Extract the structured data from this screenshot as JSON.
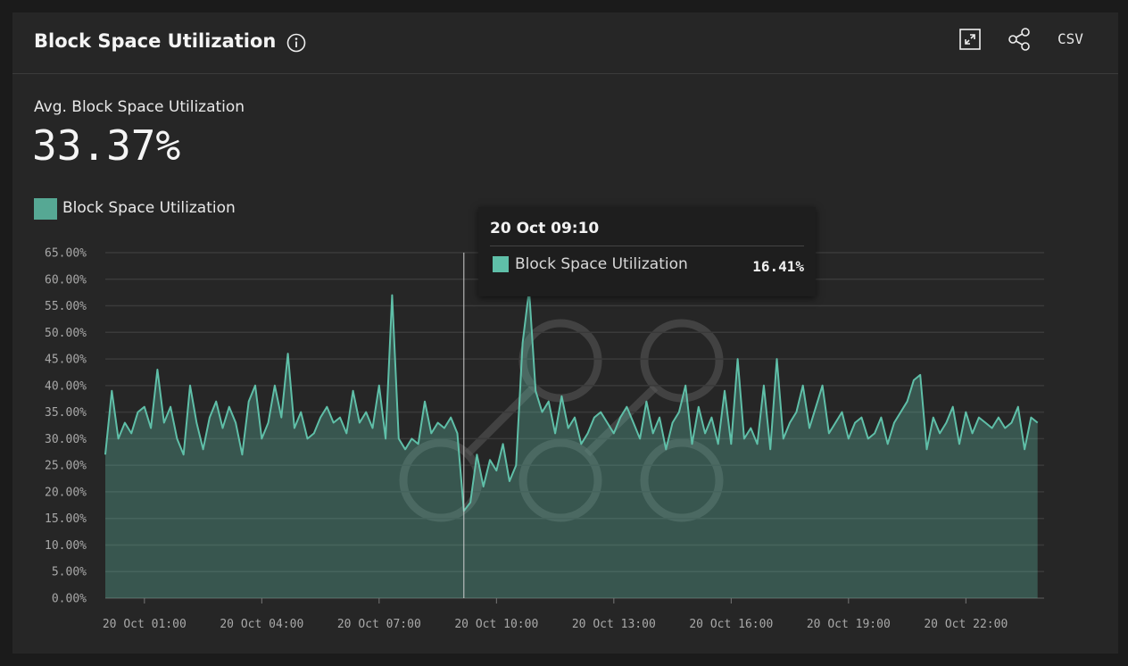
{
  "header": {
    "title": "Block Space Utilization",
    "csv": "CSV"
  },
  "stat": {
    "label": "Avg. Block Space Utilization",
    "value": "33.37%"
  },
  "tooltip": {
    "title": "20 Oct 09:10",
    "series": "Block Space Utilization",
    "value_label": "16.41%"
  },
  "chart_data": {
    "type": "area",
    "x": [
      "20 Oct 00:00",
      "20 Oct 00:10",
      "20 Oct 00:20",
      "20 Oct 00:30",
      "20 Oct 00:40",
      "20 Oct 00:50",
      "20 Oct 01:00",
      "20 Oct 01:10",
      "20 Oct 01:20",
      "20 Oct 01:30",
      "20 Oct 01:40",
      "20 Oct 01:50",
      "20 Oct 02:00",
      "20 Oct 02:10",
      "20 Oct 02:20",
      "20 Oct 02:30",
      "20 Oct 02:40",
      "20 Oct 02:50",
      "20 Oct 03:00",
      "20 Oct 03:10",
      "20 Oct 03:20",
      "20 Oct 03:30",
      "20 Oct 03:40",
      "20 Oct 03:50",
      "20 Oct 04:00",
      "20 Oct 04:10",
      "20 Oct 04:20",
      "20 Oct 04:30",
      "20 Oct 04:40",
      "20 Oct 04:50",
      "20 Oct 05:00",
      "20 Oct 05:10",
      "20 Oct 05:20",
      "20 Oct 05:30",
      "20 Oct 05:40",
      "20 Oct 05:50",
      "20 Oct 06:00",
      "20 Oct 06:10",
      "20 Oct 06:20",
      "20 Oct 06:30",
      "20 Oct 06:40",
      "20 Oct 06:50",
      "20 Oct 07:00",
      "20 Oct 07:10",
      "20 Oct 07:20",
      "20 Oct 07:30",
      "20 Oct 07:40",
      "20 Oct 07:50",
      "20 Oct 08:00",
      "20 Oct 08:10",
      "20 Oct 08:20",
      "20 Oct 08:30",
      "20 Oct 08:40",
      "20 Oct 08:50",
      "20 Oct 09:00",
      "20 Oct 09:10",
      "20 Oct 09:20",
      "20 Oct 09:30",
      "20 Oct 09:40",
      "20 Oct 09:50",
      "20 Oct 10:00",
      "20 Oct 10:10",
      "20 Oct 10:20",
      "20 Oct 10:30",
      "20 Oct 10:40",
      "20 Oct 10:50",
      "20 Oct 11:00",
      "20 Oct 11:10",
      "20 Oct 11:20",
      "20 Oct 11:30",
      "20 Oct 11:40",
      "20 Oct 11:50",
      "20 Oct 12:00",
      "20 Oct 12:10",
      "20 Oct 12:20",
      "20 Oct 12:30",
      "20 Oct 12:40",
      "20 Oct 12:50",
      "20 Oct 13:00",
      "20 Oct 13:10",
      "20 Oct 13:20",
      "20 Oct 13:30",
      "20 Oct 13:40",
      "20 Oct 13:50",
      "20 Oct 14:00",
      "20 Oct 14:10",
      "20 Oct 14:20",
      "20 Oct 14:30",
      "20 Oct 14:40",
      "20 Oct 14:50",
      "20 Oct 15:00",
      "20 Oct 15:10",
      "20 Oct 15:20",
      "20 Oct 15:30",
      "20 Oct 15:40",
      "20 Oct 15:50",
      "20 Oct 16:00",
      "20 Oct 16:10",
      "20 Oct 16:20",
      "20 Oct 16:30",
      "20 Oct 16:40",
      "20 Oct 16:50",
      "20 Oct 17:00",
      "20 Oct 17:10",
      "20 Oct 17:20",
      "20 Oct 17:30",
      "20 Oct 17:40",
      "20 Oct 17:50",
      "20 Oct 18:00",
      "20 Oct 18:10",
      "20 Oct 18:20",
      "20 Oct 18:30",
      "20 Oct 18:40",
      "20 Oct 18:50",
      "20 Oct 19:00",
      "20 Oct 19:10",
      "20 Oct 19:20",
      "20 Oct 19:30",
      "20 Oct 19:40",
      "20 Oct 19:50",
      "20 Oct 20:00",
      "20 Oct 20:10",
      "20 Oct 20:20",
      "20 Oct 20:30",
      "20 Oct 20:40",
      "20 Oct 20:50",
      "20 Oct 21:00",
      "20 Oct 21:10",
      "20 Oct 21:20",
      "20 Oct 21:30",
      "20 Oct 21:40",
      "20 Oct 21:50",
      "20 Oct 22:00",
      "20 Oct 22:10",
      "20 Oct 22:20",
      "20 Oct 22:30",
      "20 Oct 22:40",
      "20 Oct 22:50",
      "20 Oct 23:00",
      "20 Oct 23:10",
      "20 Oct 23:20",
      "20 Oct 23:30",
      "20 Oct 23:40",
      "20 Oct 23:50"
    ],
    "series": [
      {
        "name": "Block Space Utilization",
        "color": "#5fbfa8",
        "values": [
          27,
          39,
          30,
          33,
          31,
          35,
          36,
          32,
          43,
          33,
          36,
          30,
          27,
          40,
          33,
          28,
          34,
          37,
          32,
          36,
          33,
          27,
          37,
          40,
          30,
          33,
          40,
          34,
          46,
          32,
          35,
          30,
          31,
          34,
          36,
          33,
          34,
          31,
          39,
          33,
          35,
          32,
          40,
          30,
          57,
          30,
          28,
          30,
          29,
          37,
          31,
          33,
          32,
          34,
          31,
          16.41,
          18,
          27,
          21,
          26,
          24,
          29,
          22,
          25,
          48,
          58,
          39,
          35,
          37,
          31,
          38,
          32,
          34,
          29,
          31,
          34,
          35,
          33,
          31,
          34,
          36,
          33,
          30,
          37,
          31,
          34,
          28,
          33,
          35,
          40,
          29,
          36,
          31,
          34,
          29,
          39,
          29,
          45,
          30,
          32,
          29,
          40,
          28,
          45,
          30,
          33,
          35,
          40,
          32,
          36,
          40,
          31,
          33,
          35,
          30,
          33,
          34,
          30,
          31,
          34,
          29,
          33,
          35,
          37,
          41,
          42,
          28,
          34,
          31,
          33,
          36,
          29,
          35,
          31,
          34,
          33,
          32,
          34,
          32,
          33,
          36,
          28,
          34,
          33
        ]
      }
    ],
    "ylim": [
      0,
      65
    ],
    "yticks": [
      {
        "value": 0,
        "label": "0.00%"
      },
      {
        "value": 5,
        "label": "5.00%"
      },
      {
        "value": 10,
        "label": "10.00%"
      },
      {
        "value": 15,
        "label": "15.00%"
      },
      {
        "value": 20,
        "label": "20.00%"
      },
      {
        "value": 25,
        "label": "25.00%"
      },
      {
        "value": 30,
        "label": "30.00%"
      },
      {
        "value": 35,
        "label": "35.00%"
      },
      {
        "value": 40,
        "label": "40.00%"
      },
      {
        "value": 45,
        "label": "45.00%"
      },
      {
        "value": 50,
        "label": "50.00%"
      },
      {
        "value": 55,
        "label": "55.00%"
      },
      {
        "value": 60,
        "label": "60.00%"
      },
      {
        "value": 65,
        "label": "65.00%"
      }
    ],
    "grid": true
  }
}
